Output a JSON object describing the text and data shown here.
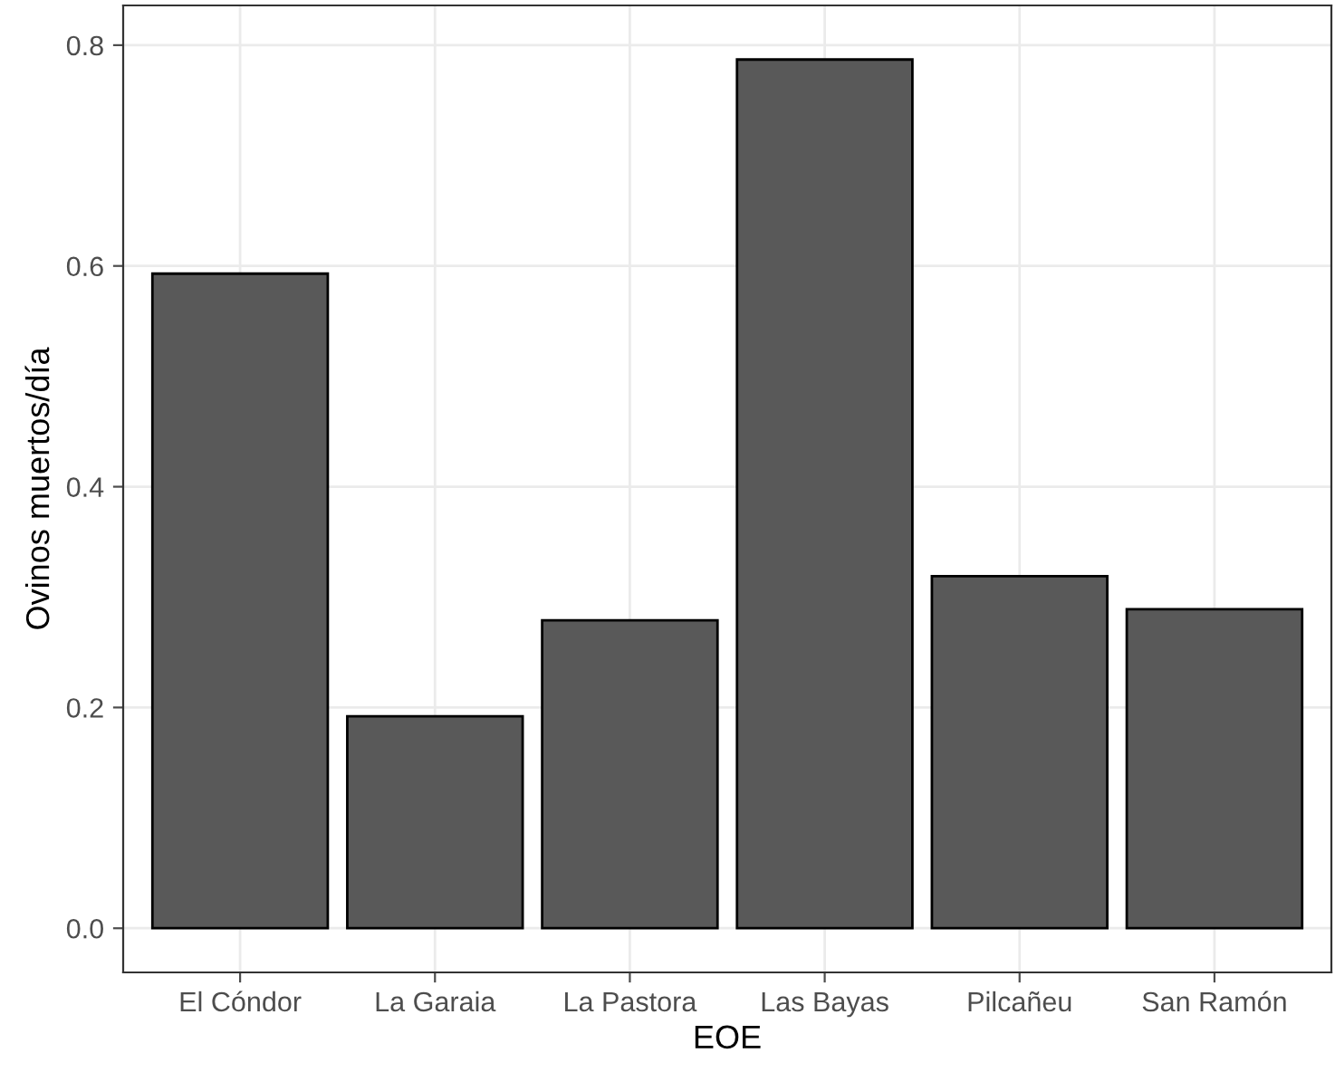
{
  "chart_data": {
    "type": "bar",
    "xlabel": "EOE",
    "ylabel": "Ovinos muertos/día",
    "categories": [
      "El Cóndor",
      "La Garaia",
      "La Pastora",
      "Las Bayas",
      "Pilcañeu",
      "San Ramón"
    ],
    "values": [
      0.593,
      0.192,
      0.279,
      0.787,
      0.319,
      0.289
    ],
    "color": "#595959",
    "ylim": [
      -0.04,
      0.836
    ],
    "yticks": [
      {
        "value": 0,
        "label": "0.0"
      },
      0.2,
      0.4,
      0.6,
      0.8
    ],
    "grid": true,
    "legend": false
  }
}
